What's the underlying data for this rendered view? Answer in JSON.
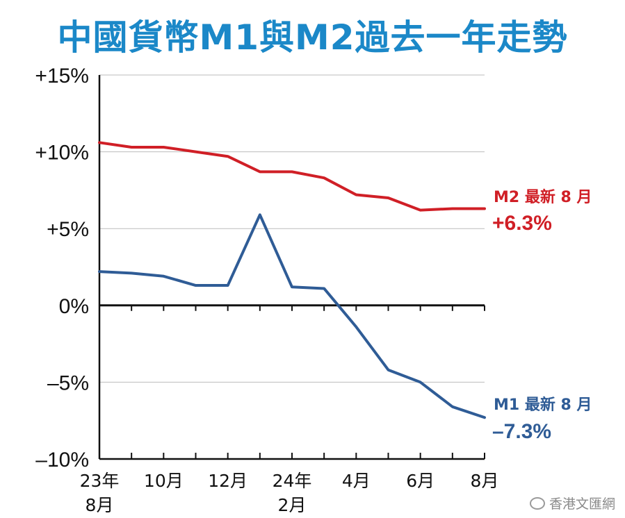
{
  "title": "中國貨幣M1與M2過去一年走勢",
  "colors": {
    "m2": "#d01f26",
    "m1": "#2f5c96",
    "title": "#1b88c8",
    "grid": "#bbbbbb"
  },
  "chart_data": {
    "type": "line",
    "title": "中國貨幣M1與M2過去一年走勢",
    "ylim": [
      -10,
      15
    ],
    "y_ticks": [
      {
        "value": 15,
        "label": "+15%"
      },
      {
        "value": 10,
        "label": "+10%"
      },
      {
        "value": 5,
        "label": "+5%"
      },
      {
        "value": 0,
        "label": "0%"
      },
      {
        "value": -5,
        "label": "–5%"
      },
      {
        "value": -10,
        "label": "–10%"
      }
    ],
    "x": [
      "2023-08",
      "2023-09",
      "2023-10",
      "2023-11",
      "2023-12",
      "2024-01",
      "2024-02",
      "2024-03",
      "2024-04",
      "2024-05",
      "2024-06",
      "2024-07",
      "2024-08"
    ],
    "x_tick_labels": [
      {
        "index": 0,
        "line1": "23年",
        "line2": "8月"
      },
      {
        "index": 2,
        "line1": "10月",
        "line2": ""
      },
      {
        "index": 4,
        "line1": "12月",
        "line2": ""
      },
      {
        "index": 6,
        "line1": "24年",
        "line2": "2月"
      },
      {
        "index": 8,
        "line1": "4月",
        "line2": ""
      },
      {
        "index": 10,
        "line1": "6月",
        "line2": ""
      },
      {
        "index": 12,
        "line1": "8月",
        "line2": ""
      }
    ],
    "grid": true,
    "series": [
      {
        "name": "M2",
        "values": [
          10.6,
          10.3,
          10.3,
          10.0,
          9.7,
          8.7,
          8.7,
          8.3,
          7.2,
          7.0,
          6.2,
          6.3,
          6.3
        ],
        "latest_label": "M2 最新 8 月",
        "latest_value": "+6.3%"
      },
      {
        "name": "M1",
        "values": [
          2.2,
          2.1,
          1.9,
          1.3,
          1.3,
          5.9,
          1.2,
          1.1,
          -1.4,
          -4.2,
          -5.0,
          -6.6,
          -7.3
        ],
        "latest_label": "M1 最新 8 月",
        "latest_value": "–7.3%"
      }
    ]
  },
  "watermark": "香港文匯網"
}
